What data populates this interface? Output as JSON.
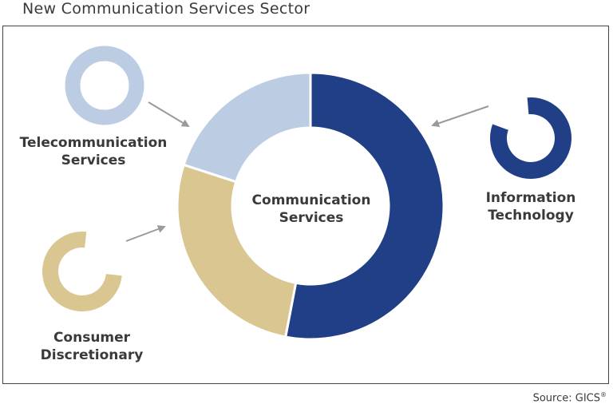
{
  "title": "New Communication Services Sector",
  "center_label": [
    "Communication",
    "Services"
  ],
  "segments": [
    {
      "name_lines": [
        "Information",
        "Technology"
      ],
      "color": "#213f86",
      "share": 0.53
    },
    {
      "name_lines": [
        "Consumer",
        "Discretionary"
      ],
      "color": "#d9c690",
      "share": 0.27
    },
    {
      "name_lines": [
        "Telecommunication",
        "Services"
      ],
      "color": "#bccde3",
      "share": 0.2
    }
  ],
  "source": {
    "text": "Source: GICS",
    "mark": "®"
  },
  "colors": {
    "arrow": "#9a9a9a",
    "text": "#3a3a3a",
    "gap": "#ffffff"
  }
}
